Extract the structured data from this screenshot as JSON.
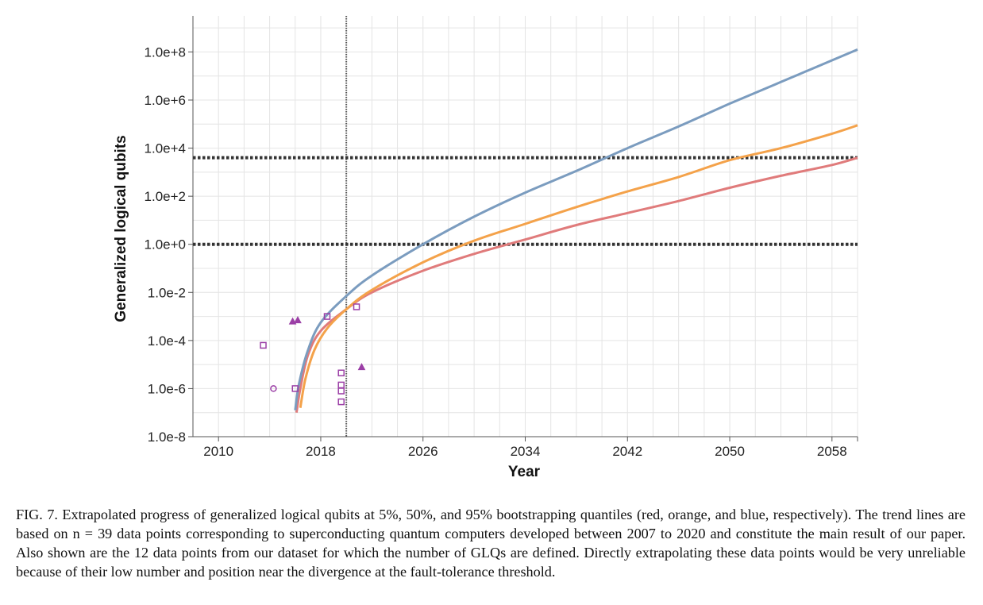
{
  "chart_data": {
    "type": "line",
    "xlabel": "Year",
    "ylabel": "Generalized logical qubits",
    "x_ticks": [
      "2010",
      "2018",
      "2026",
      "2034",
      "2042",
      "2050",
      "2058"
    ],
    "y_ticks": [
      "1.0e-8",
      "1.0e-6",
      "1.0e-4",
      "1.0e-2",
      "1.0e+0",
      "1.0e+2",
      "1.0e+4",
      "1.0e+6",
      "1.0e+8"
    ],
    "xlim": [
      2008,
      2060
    ],
    "ylim_log10": [
      -8,
      9.5
    ],
    "y_scale": "log",
    "grid": true,
    "colors": {
      "red": "#e07b7b",
      "orange": "#f4a24a",
      "blue": "#7b9cbf",
      "marker": "#9b3fa6",
      "threshold": "#333333"
    },
    "threshold_lines_log10": [
      0,
      3.6
    ],
    "reference_year": 2020,
    "series": [
      {
        "color": "red",
        "points": [
          [
            2016.1,
            -7.0
          ],
          [
            2016.4,
            -6.0
          ],
          [
            2017.0,
            -4.6
          ],
          [
            2018.0,
            -3.6
          ],
          [
            2020.0,
            -2.7
          ],
          [
            2022.0,
            -2.0
          ],
          [
            2026.0,
            -1.1
          ],
          [
            2030.0,
            -0.4
          ],
          [
            2034.0,
            0.2
          ],
          [
            2038.0,
            0.8
          ],
          [
            2042.0,
            1.3
          ],
          [
            2046.0,
            1.8
          ],
          [
            2050.0,
            2.35
          ],
          [
            2054.0,
            2.85
          ],
          [
            2058.0,
            3.3
          ],
          [
            2060.0,
            3.6
          ]
        ]
      },
      {
        "color": "orange",
        "points": [
          [
            2016.4,
            -6.8
          ],
          [
            2016.8,
            -5.6
          ],
          [
            2017.5,
            -4.4
          ],
          [
            2018.5,
            -3.5
          ],
          [
            2020.0,
            -2.7
          ],
          [
            2022.0,
            -1.9
          ],
          [
            2026.0,
            -0.75
          ],
          [
            2030.0,
            0.15
          ],
          [
            2034.0,
            0.85
          ],
          [
            2038.0,
            1.55
          ],
          [
            2042.0,
            2.2
          ],
          [
            2046.0,
            2.8
          ],
          [
            2050.0,
            3.5
          ],
          [
            2054.0,
            4.0
          ],
          [
            2058.0,
            4.6
          ],
          [
            2060.0,
            4.95
          ]
        ]
      },
      {
        "color": "blue",
        "points": [
          [
            2016.0,
            -6.9
          ],
          [
            2016.3,
            -5.8
          ],
          [
            2017.0,
            -4.4
          ],
          [
            2018.0,
            -3.25
          ],
          [
            2020.0,
            -2.15
          ],
          [
            2022.0,
            -1.3
          ],
          [
            2026.0,
            0.0
          ],
          [
            2030.0,
            1.15
          ],
          [
            2034.0,
            2.15
          ],
          [
            2038.0,
            3.05
          ],
          [
            2042.0,
            4.0
          ],
          [
            2046.0,
            4.9
          ],
          [
            2050.0,
            5.85
          ],
          [
            2054.0,
            6.75
          ],
          [
            2058.0,
            7.65
          ],
          [
            2060.0,
            8.1
          ]
        ]
      }
    ],
    "markers": [
      {
        "shape": "square",
        "x": 2013.5,
        "y": -4.2
      },
      {
        "shape": "circle",
        "x": 2014.3,
        "y": -6.0
      },
      {
        "shape": "triangle",
        "x": 2015.8,
        "y": -3.2
      },
      {
        "shape": "triangle",
        "x": 2016.2,
        "y": -3.15
      },
      {
        "shape": "square",
        "x": 2016.0,
        "y": -6.0
      },
      {
        "shape": "square",
        "x": 2018.5,
        "y": -3.0
      },
      {
        "shape": "square",
        "x": 2019.6,
        "y": -5.35
      },
      {
        "shape": "square",
        "x": 2019.6,
        "y": -5.85
      },
      {
        "shape": "square",
        "x": 2019.6,
        "y": -6.1
      },
      {
        "shape": "square",
        "x": 2019.6,
        "y": -6.55
      },
      {
        "shape": "square",
        "x": 2020.8,
        "y": -2.6
      },
      {
        "shape": "triangle",
        "x": 2021.2,
        "y": -5.1
      }
    ]
  },
  "caption": "FIG. 7. Extrapolated progress of generalized logical qubits at 5%, 50%, and 95% bootstrapping quantiles (red, orange, and blue, respectively). The trend lines are based on n = 39 data points corresponding to superconducting quantum computers developed between 2007 to 2020 and constitute the main result of our paper. Also shown are the 12 data points from our dataset for which the number of GLQs are defined. Directly extrapolating these data points would be very unreliable because of their low number and position near the divergence at the fault-tolerance threshold."
}
